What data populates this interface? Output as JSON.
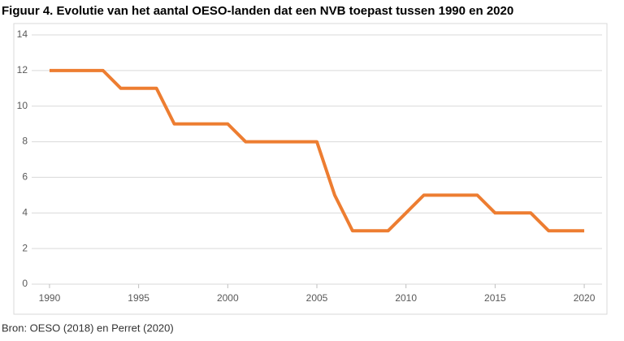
{
  "chart_data": {
    "type": "line",
    "title": "Figuur 4. Evolutie van het aantal OESO-landen dat een NVB toepast tussen 1990 en 2020",
    "source": "Bron: OESO (2018) en Perret (2020)",
    "x": [
      1990,
      1991,
      1992,
      1993,
      1994,
      1995,
      1996,
      1997,
      1998,
      1999,
      2000,
      2001,
      2002,
      2003,
      2004,
      2005,
      2006,
      2007,
      2008,
      2009,
      2010,
      2011,
      2012,
      2013,
      2014,
      2015,
      2016,
      2017,
      2018,
      2019,
      2020
    ],
    "values": [
      12,
      12,
      12,
      12,
      11,
      11,
      11,
      9,
      9,
      9,
      9,
      8,
      8,
      8,
      8,
      8,
      5,
      3,
      3,
      3,
      4,
      5,
      5,
      5,
      5,
      4,
      4,
      4,
      3,
      3,
      3
    ],
    "color": "#ed7d31",
    "xlim": [
      1989,
      2021
    ],
    "xticks": [
      1990,
      1995,
      2000,
      2005,
      2010,
      2015,
      2020
    ],
    "ylim": [
      0,
      14
    ],
    "yticks": [
      0,
      2,
      4,
      6,
      8,
      10,
      12,
      14
    ],
    "grid": true
  }
}
